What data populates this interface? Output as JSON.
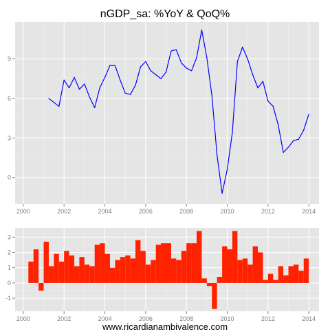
{
  "title": "nGDP_sa: %YoY & QoQ%",
  "footer": "www.ricardianambivalence.com",
  "chart_data": [
    {
      "type": "line",
      "name": "YoY",
      "color": "#0000ff",
      "background": "#e5e5e5",
      "grid": true,
      "xlim": [
        1999.6,
        2014.5
      ],
      "ylim": [
        -2.0,
        11.8
      ],
      "xticks": [
        2000,
        2002,
        2004,
        2006,
        2008,
        2010,
        2012,
        2014
      ],
      "xtick_labels": [
        "2000",
        "2002",
        "2004",
        "2006",
        "2008",
        "2010",
        "2012",
        "2014"
      ],
      "yticks": [
        0,
        3,
        6,
        9
      ],
      "ytick_labels": [
        "0",
        "3",
        "6",
        "9"
      ],
      "x": [
        2001.25,
        2001.75,
        2002.0,
        2002.25,
        2002.5,
        2002.75,
        2003.0,
        2003.25,
        2003.5,
        2003.75,
        2004.0,
        2004.25,
        2004.5,
        2004.75,
        2005.0,
        2005.25,
        2005.5,
        2005.75,
        2006.0,
        2006.25,
        2006.5,
        2006.75,
        2007.0,
        2007.25,
        2007.5,
        2007.75,
        2008.0,
        2008.25,
        2008.5,
        2008.75,
        2009.0,
        2009.25,
        2009.5,
        2009.75,
        2010.0,
        2010.25,
        2010.5,
        2010.75,
        2011.0,
        2011.25,
        2011.5,
        2011.75,
        2012.0,
        2012.25,
        2012.5,
        2012.75,
        2013.0,
        2013.25,
        2013.5,
        2013.75,
        2014.0
      ],
      "y": [
        6.0,
        5.4,
        7.4,
        6.8,
        7.6,
        6.7,
        7.1,
        6.1,
        5.3,
        6.8,
        7.6,
        8.5,
        8.5,
        7.4,
        6.4,
        6.3,
        7.0,
        8.4,
        8.8,
        8.1,
        7.8,
        7.5,
        8.0,
        9.6,
        9.7,
        8.7,
        8.3,
        8.1,
        9.1,
        11.2,
        9.1,
        6.2,
        1.7,
        -1.2,
        0.6,
        3.4,
        8.8,
        9.9,
        9.0,
        7.8,
        6.8,
        7.3,
        5.8,
        5.4,
        4.0,
        1.9,
        2.3,
        2.8,
        2.9,
        3.6,
        4.8
      ]
    },
    {
      "type": "bar",
      "name": "QoQ",
      "color": "#ff2200",
      "background": "#e5e5e5",
      "grid": true,
      "xlim": [
        1999.6,
        2014.5
      ],
      "ylim": [
        -1.85,
        3.6
      ],
      "xticks": [
        2000,
        2002,
        2004,
        2006,
        2008,
        2010,
        2012,
        2014
      ],
      "xtick_labels": [
        "2000",
        "2002",
        "2004",
        "2006",
        "2008",
        "2010",
        "2012",
        "2014"
      ],
      "yticks": [
        -1,
        0,
        1,
        2,
        3
      ],
      "ytick_labels": [
        "-1",
        "0",
        "1",
        "2",
        "3"
      ],
      "bar_width": 0.25,
      "x": [
        2000.25,
        2000.5,
        2000.75,
        2001.0,
        2001.25,
        2001.5,
        2001.75,
        2002.0,
        2002.25,
        2002.5,
        2002.75,
        2003.0,
        2003.25,
        2003.5,
        2003.75,
        2004.0,
        2004.25,
        2004.5,
        2004.75,
        2005.0,
        2005.25,
        2005.5,
        2005.75,
        2006.0,
        2006.25,
        2006.5,
        2006.75,
        2007.0,
        2007.25,
        2007.5,
        2007.75,
        2008.0,
        2008.25,
        2008.5,
        2008.75,
        2009.0,
        2009.25,
        2009.5,
        2009.75,
        2010.0,
        2010.25,
        2010.5,
        2010.75,
        2011.0,
        2011.25,
        2011.5,
        2011.75,
        2012.0,
        2012.25,
        2012.5,
        2012.75,
        2013.0,
        2013.25,
        2013.5,
        2013.75
      ],
      "values": [
        1.4,
        2.2,
        -0.5,
        2.7,
        1.1,
        1.9,
        1.4,
        2.1,
        1.8,
        1.1,
        1.7,
        1.2,
        1.1,
        2.5,
        2.6,
        1.9,
        1.0,
        1.5,
        1.7,
        1.8,
        1.6,
        2.8,
        2.1,
        1.2,
        1.5,
        2.5,
        2.6,
        2.6,
        1.6,
        1.5,
        2.1,
        2.6,
        2.6,
        3.4,
        0.3,
        -0.2,
        -1.7,
        0.4,
        2.4,
        2.2,
        3.4,
        1.5,
        1.6,
        1.2,
        2.4,
        2.0,
        0.2,
        0.6,
        0.2,
        1.1,
        0.5,
        1.1,
        1.2,
        0.8,
        1.6
      ]
    }
  ]
}
